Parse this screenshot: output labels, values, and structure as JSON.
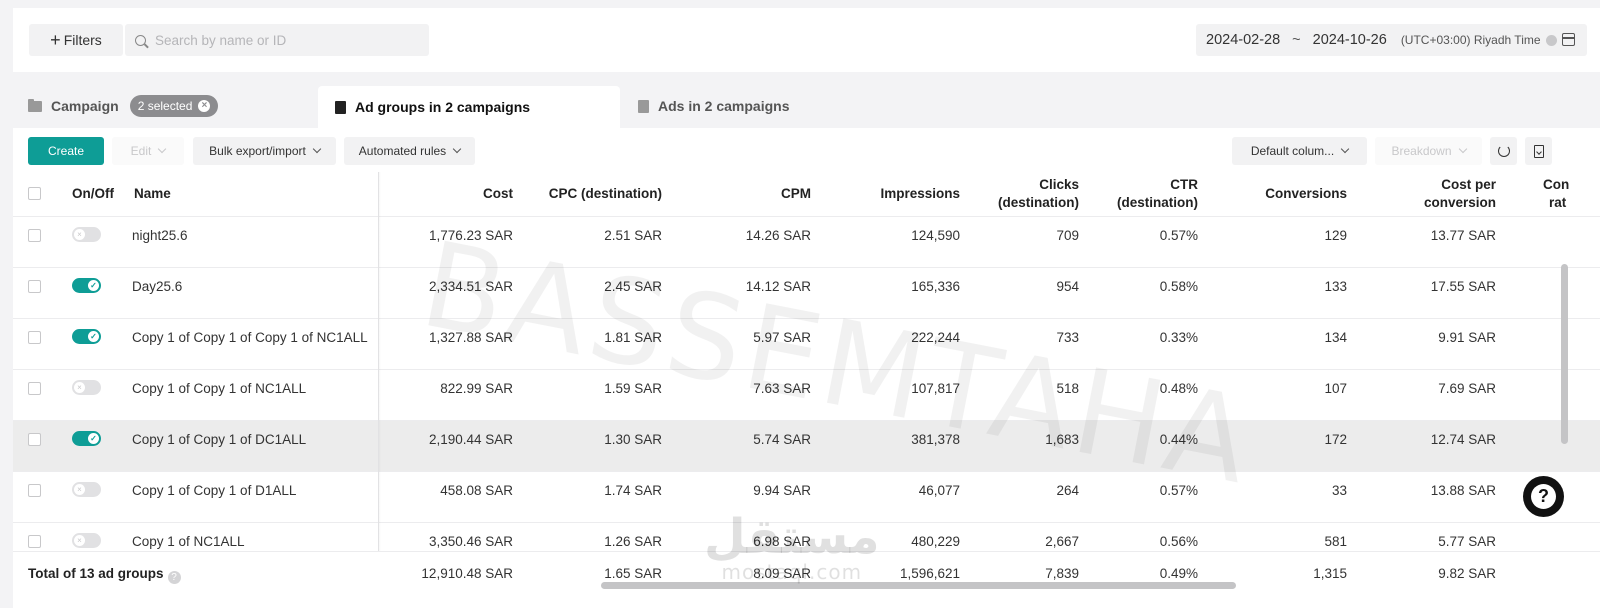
{
  "topbar": {
    "filters_label": "Filters",
    "search_placeholder": "Search by name or ID",
    "date_start": "2024-02-28",
    "date_sep": "~",
    "date_end": "2024-10-26",
    "timezone": "(UTC+03:00) Riyadh Time"
  },
  "tabs": {
    "campaign": "Campaign",
    "selected_badge": "2 selected",
    "adgroups": "Ad groups in 2 campaigns",
    "ads": "Ads in 2 campaigns"
  },
  "toolbar": {
    "create": "Create",
    "edit": "Edit",
    "bulk": "Bulk export/import",
    "rules": "Automated rules",
    "columns": "Default colum...",
    "breakdown": "Breakdown"
  },
  "columns": {
    "onoff": "On/Off",
    "name": "Name",
    "cost": "Cost",
    "cpc": "CPC (destination)",
    "cpm": "CPM",
    "impressions": "Impressions",
    "clicks_1": "Clicks",
    "clicks_2": "(destination)",
    "ctr_1": "CTR",
    "ctr_2": "(destination)",
    "conversions": "Conversions",
    "cpconv_1": "Cost per",
    "cpconv_2": "conversion",
    "rate_1": "Con",
    "rate_2": "rat"
  },
  "rows": [
    {
      "name": "night25.6",
      "on": false,
      "cost": "1,776.23 SAR",
      "cpc": "2.51 SAR",
      "cpm": "14.26 SAR",
      "impressions": "124,590",
      "clicks": "709",
      "ctr": "0.57%",
      "conversions": "129",
      "cpconv": "13.77 SAR"
    },
    {
      "name": "Day25.6",
      "on": true,
      "cost": "2,334.51 SAR",
      "cpc": "2.45 SAR",
      "cpm": "14.12 SAR",
      "impressions": "165,336",
      "clicks": "954",
      "ctr": "0.58%",
      "conversions": "133",
      "cpconv": "17.55 SAR"
    },
    {
      "name": "Copy 1 of Copy 1 of Copy 1 of NC1ALL",
      "on": true,
      "cost": "1,327.88 SAR",
      "cpc": "1.81 SAR",
      "cpm": "5.97 SAR",
      "impressions": "222,244",
      "clicks": "733",
      "ctr": "0.33%",
      "conversions": "134",
      "cpconv": "9.91 SAR"
    },
    {
      "name": "Copy 1 of Copy 1 of NC1ALL",
      "on": false,
      "cost": "822.99 SAR",
      "cpc": "1.59 SAR",
      "cpm": "7.63 SAR",
      "impressions": "107,817",
      "clicks": "518",
      "ctr": "0.48%",
      "conversions": "107",
      "cpconv": "7.69 SAR"
    },
    {
      "name": "Copy 1 of Copy 1 of DC1ALL",
      "on": true,
      "cost": "2,190.44 SAR",
      "cpc": "1.30 SAR",
      "cpm": "5.74 SAR",
      "impressions": "381,378",
      "clicks": "1,683",
      "ctr": "0.44%",
      "conversions": "172",
      "cpconv": "12.74 SAR"
    },
    {
      "name": "Copy 1 of Copy 1 of D1ALL",
      "on": false,
      "cost": "458.08 SAR",
      "cpc": "1.74 SAR",
      "cpm": "9.94 SAR",
      "impressions": "46,077",
      "clicks": "264",
      "ctr": "0.57%",
      "conversions": "33",
      "cpconv": "13.88 SAR"
    },
    {
      "name": "Copy 1 of NC1ALL",
      "on": false,
      "cost": "3,350.46 SAR",
      "cpc": "1.26 SAR",
      "cpm": "6.98 SAR",
      "impressions": "480,229",
      "clicks": "2,667",
      "ctr": "0.56%",
      "conversions": "581",
      "cpconv": "5.77 SAR"
    }
  ],
  "totals": {
    "label": "Total of 13 ad groups",
    "cost": "12,910.48 SAR",
    "cpc": "1.65 SAR",
    "cpm": "8.09 SAR",
    "impressions": "1,596,621",
    "clicks": "7,839",
    "ctr": "0.49%",
    "conversions": "1,315",
    "cpconv": "9.82 SAR"
  },
  "watermark": {
    "text": "BASSEMTAHA",
    "brand_ar": "مستقل",
    "brand_lat": "mostaql.com"
  },
  "colors": {
    "accent": "#0e9d96"
  },
  "icons": {
    "search": "search-icon",
    "calendar": "calendar-icon",
    "refresh": "refresh-icon",
    "export": "export-icon",
    "help": "help-icon"
  }
}
